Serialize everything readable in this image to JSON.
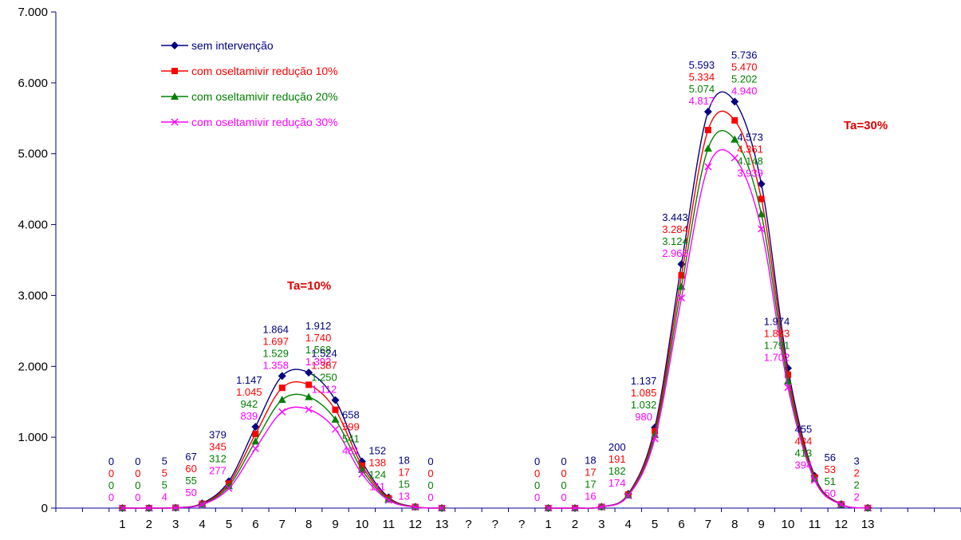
{
  "chart_data": {
    "type": "line",
    "title": "",
    "xlabel": "",
    "ylabel": "",
    "ylim": [
      0,
      7000
    ],
    "y_ticks": [
      "0",
      "1.000",
      "2.000",
      "3.000",
      "4.000",
      "5.000",
      "6.000",
      "7.000"
    ],
    "categories": [
      "1",
      "2",
      "3",
      "4",
      "5",
      "6",
      "7",
      "8",
      "9",
      "10",
      "11",
      "12",
      "13",
      "?",
      "?",
      "?",
      "1",
      "2",
      "3",
      "4",
      "5",
      "6",
      "7",
      "8",
      "9",
      "10",
      "11",
      "12",
      "13"
    ],
    "legend_position": "top-left",
    "grid": false,
    "annotations": [
      {
        "text": "Ta=10%",
        "group": "left"
      },
      {
        "text": "Ta=30%",
        "group": "right"
      }
    ],
    "groups": [
      {
        "annotation": "Ta=10%",
        "series": [
          {
            "name": "sem intervenção",
            "color": "#000080",
            "marker": "diamond",
            "values": [
              0,
              0,
              5,
              67,
              379,
              1147,
              1864,
              1912,
              1524,
              658,
              152,
              18,
              0
            ],
            "labels": [
              "0",
              "0",
              "5",
              "67",
              "379",
              "1.147",
              "1.864",
              "1.912",
              "1.524",
              "658",
              "152",
              "18",
              "0"
            ]
          },
          {
            "name": "com oseltamivir redução 10%",
            "color": "#ff0000",
            "marker": "square",
            "values": [
              0,
              0,
              5,
              60,
              345,
              1045,
              1697,
              1740,
              1387,
              599,
              138,
              17,
              0
            ],
            "labels": [
              "0",
              "0",
              "5",
              "60",
              "345",
              "1.045",
              "1.697",
              "1.740",
              "1.387",
              "599",
              "138",
              "17",
              "0"
            ]
          },
          {
            "name": "com oseltamivir redução 20%",
            "color": "#008000",
            "marker": "triangle",
            "values": [
              0,
              0,
              5,
              55,
              312,
              942,
              1529,
              1568,
              1250,
              541,
              124,
              15,
              0
            ],
            "labels": [
              "0",
              "0",
              "5",
              "55",
              "312",
              "942",
              "1.529",
              "1.568",
              "1.250",
              "541",
              "124",
              "15",
              "0"
            ]
          },
          {
            "name": "com oseltamivir redução 30%",
            "color": "#ff00ff",
            "marker": "x",
            "values": [
              0,
              0,
              4,
              50,
              277,
              839,
              1358,
              1392,
              1112,
              481,
              111,
              13,
              0
            ],
            "labels": [
              "0",
              "0",
              "4",
              "50",
              "277",
              "839",
              "1.358",
              "1.392",
              "1.112",
              "481",
              "111",
              "13",
              "0"
            ]
          }
        ]
      },
      {
        "annotation": "Ta=30%",
        "series": [
          {
            "name": "sem intervenção",
            "color": "#000080",
            "marker": "diamond",
            "values": [
              0,
              0,
              18,
              200,
              1137,
              3443,
              5593,
              5736,
              4573,
              1974,
              455,
              56,
              3
            ],
            "labels": [
              "0",
              "0",
              "18",
              "200",
              "1.137",
              "3.443",
              "5.593",
              "5.736",
              "4.573",
              "1.974",
              "455",
              "56",
              "3"
            ]
          },
          {
            "name": "com oseltamivir redução 10%",
            "color": "#ff0000",
            "marker": "square",
            "values": [
              0,
              0,
              17,
              191,
              1085,
              3284,
              5334,
              5470,
              4361,
              1883,
              434,
              53,
              2
            ],
            "labels": [
              "0",
              "0",
              "17",
              "191",
              "1.085",
              "3.284",
              "5.334",
              "5.470",
              "4.361",
              "1.883",
              "434",
              "53",
              "2"
            ]
          },
          {
            "name": "com oseltamivir redução 20%",
            "color": "#008000",
            "marker": "triangle",
            "values": [
              0,
              0,
              17,
              182,
              1032,
              3124,
              5074,
              5202,
              4148,
              1791,
              413,
              51,
              2
            ],
            "labels": [
              "0",
              "0",
              "17",
              "182",
              "1.032",
              "3.124",
              "5.074",
              "5.202",
              "4.148",
              "1.791",
              "413",
              "51",
              "2"
            ]
          },
          {
            "name": "com oseltamivir redução 30%",
            "color": "#ff00ff",
            "marker": "x",
            "values": [
              0,
              0,
              16,
              174,
              980,
              2966,
              4817,
              4940,
              3939,
              1702,
              394,
              50,
              2
            ],
            "labels": [
              "0",
              "0",
              "16",
              "174",
              "980",
              "2.966",
              "4.817",
              "4.940",
              "3.939",
              "1.702",
              "394",
              "50",
              "2"
            ]
          }
        ]
      }
    ]
  }
}
